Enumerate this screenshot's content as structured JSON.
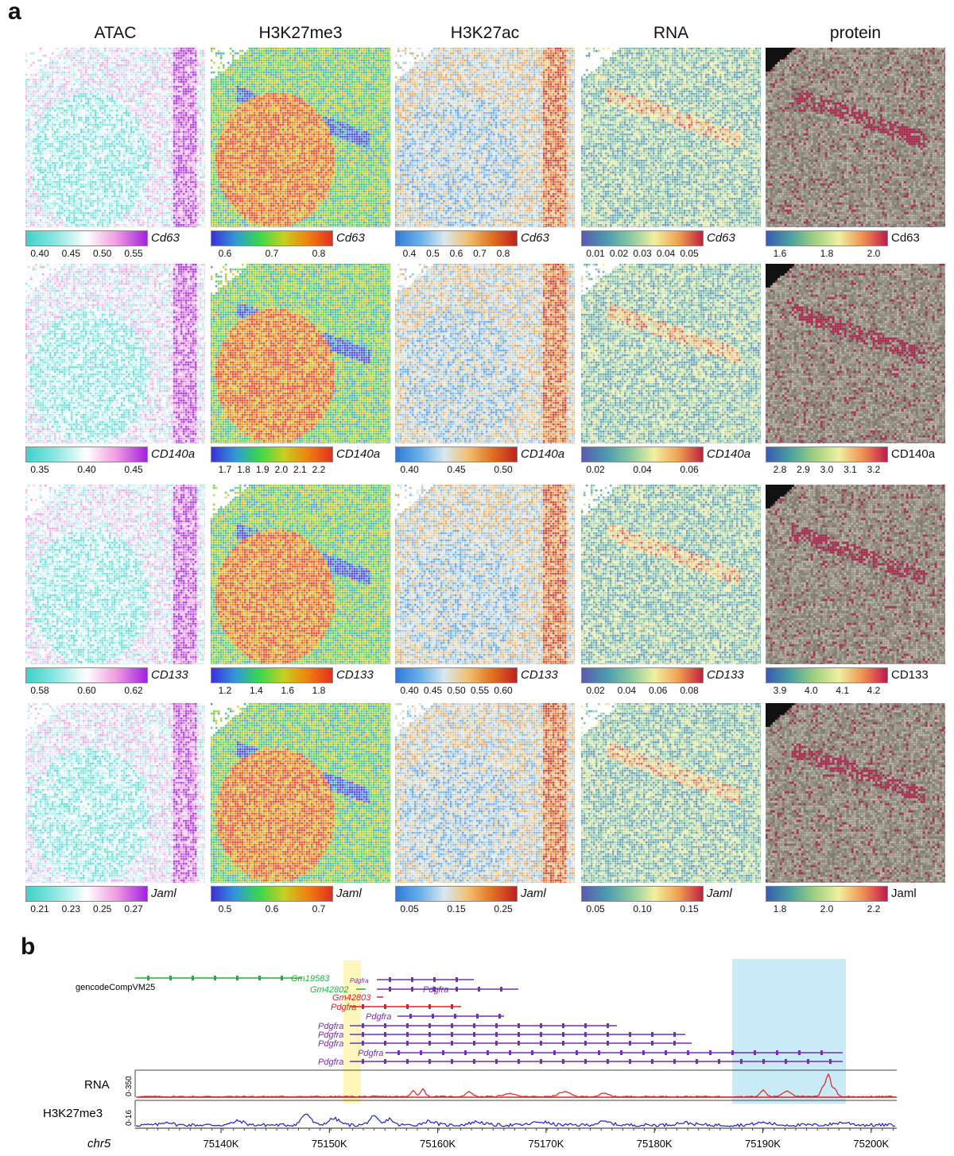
{
  "panel_a_label": "a",
  "panel_b_label": "b",
  "columns": [
    {
      "title": "ATAC",
      "palette": [
        "#3fd0c8",
        "#8fe8e4",
        "#ffffff",
        "#f09ae0",
        "#a020e0"
      ],
      "gene_italic": true
    },
    {
      "title": "H3K27me3",
      "palette": [
        "#3c2fd8",
        "#2f9ad8",
        "#3ad84a",
        "#c8d020",
        "#f08010",
        "#e03020"
      ],
      "gene_italic": true
    },
    {
      "title": "H3K27ac",
      "palette": [
        "#2f7ad8",
        "#6ab0e8",
        "#d8e8f0",
        "#f0c070",
        "#e07020",
        "#c02020"
      ],
      "gene_italic": true
    },
    {
      "title": "RNA",
      "palette": [
        "#5a5ab0",
        "#4a9ab0",
        "#8ac8a0",
        "#f0f0a0",
        "#f0a050",
        "#c02040"
      ],
      "gene_italic": true
    },
    {
      "title": "protein",
      "palette": [
        "#3a5ab0",
        "#4aa0a0",
        "#a0d080",
        "#f0f0a0",
        "#f09050",
        "#c01850"
      ],
      "gene_italic": false
    }
  ],
  "rows": [
    {
      "gene": "Cd63",
      "ticks": [
        [
          "0.40",
          "0.45",
          "0.50",
          "0.55"
        ],
        [
          "0.6",
          "0.7",
          "0.8"
        ],
        [
          "0.4",
          "0.5",
          "0.6",
          "0.7",
          "0.8"
        ],
        [
          "0.01",
          "0.02",
          "0.03",
          "0.04",
          "0.05"
        ],
        [
          "1.6",
          "1.8",
          "2.0"
        ]
      ]
    },
    {
      "gene": "CD140a",
      "ticks": [
        [
          "0.35",
          "0.40",
          "0.45"
        ],
        [
          "1.7",
          "1.8",
          "1.9",
          "2.0",
          "2.1",
          "2.2"
        ],
        [
          "0.40",
          "0.45",
          "0.50"
        ],
        [
          "0.02",
          "0.04",
          "0.06"
        ],
        [
          "2.8",
          "2.9",
          "3.0",
          "3.1",
          "3.2"
        ]
      ]
    },
    {
      "gene": "CD133",
      "ticks": [
        [
          "0.58",
          "0.60",
          "0.62"
        ],
        [
          "1.2",
          "1.4",
          "1.6",
          "1.8"
        ],
        [
          "0.40",
          "0.45",
          "0.50",
          "0.55",
          "0.60"
        ],
        [
          "0.02",
          "0.04",
          "0.06",
          "0.08"
        ],
        [
          "3.9",
          "4.0",
          "4.1",
          "4.2"
        ]
      ]
    },
    {
      "gene": "Jaml",
      "ticks": [
        [
          "0.21",
          "0.23",
          "0.25",
          "0.27"
        ],
        [
          "0.5",
          "0.6",
          "0.7"
        ],
        [
          "0.05",
          "0.15",
          "0.25"
        ],
        [
          "0.05",
          "0.10",
          "0.15"
        ],
        [
          "1.8",
          "2.0",
          "2.2"
        ]
      ]
    }
  ],
  "track": {
    "annotation_label": "gencodeCompVM25",
    "genes": [
      {
        "name": "Gm19583",
        "color": "#20b040"
      },
      {
        "name": "Pdgfra",
        "color": "#7030b0"
      },
      {
        "name": "Gm42802",
        "color": "#20b040"
      },
      {
        "name": "Pdgfra",
        "color": "#7030b0"
      },
      {
        "name": "Gm42803",
        "color": "#e02020"
      },
      {
        "name": "Pdgfra",
        "color": "#e02020"
      },
      {
        "name": "Pdgfra",
        "color": "#7030b0"
      },
      {
        "name": "Pdgfra",
        "color": "#7030b0"
      },
      {
        "name": "Pdgfra",
        "color": "#7030b0"
      },
      {
        "name": "Pdgfra",
        "color": "#7030b0"
      },
      {
        "name": "Pdgfra",
        "color": "#7030b0"
      },
      {
        "name": "Pdgfra",
        "color": "#7030b0"
      }
    ],
    "rna_label": "RNA",
    "rna_range": "0-350",
    "rna_color": "#e02020",
    "h3_label": "H3K27me3",
    "h3_range": "0-16",
    "h3_color": "#1a20d0",
    "chrom": "chr5",
    "axis_ticks": [
      "75140K",
      "75150K",
      "75160K",
      "75170K",
      "75180K",
      "75190K",
      "75200K"
    ],
    "highlight_yellow": "#fff4b0",
    "highlight_blue": "#bfe6f6"
  }
}
